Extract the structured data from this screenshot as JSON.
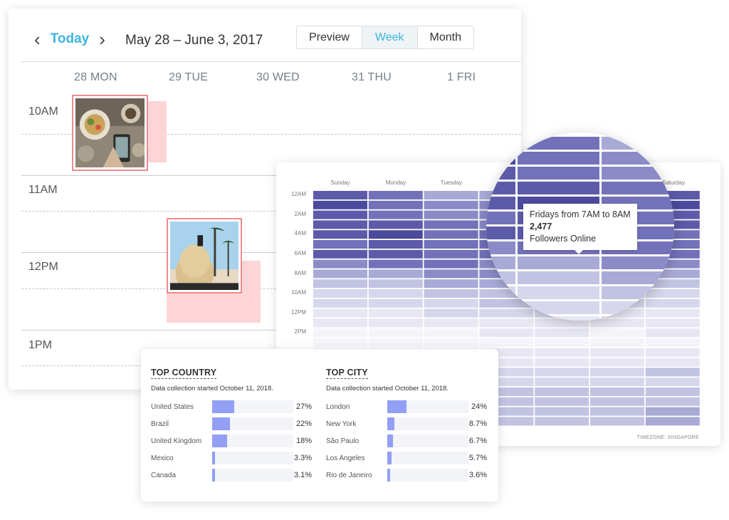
{
  "calendar": {
    "nav": {
      "prev_icon": "chevron-left-icon",
      "today_label": "Today",
      "next_icon": "chevron-right-icon"
    },
    "date_range": "May 28 – June 3, 2017",
    "views": [
      {
        "label": "Preview",
        "active": false
      },
      {
        "label": "Week",
        "active": true
      },
      {
        "label": "Month",
        "active": false
      }
    ],
    "days": [
      "28 MON",
      "29 TUE",
      "30 WED",
      "31 THU",
      "1 FRI"
    ],
    "hours": [
      "10AM",
      "11AM",
      "12PM",
      "1PM"
    ],
    "accent": "#3cb6e0",
    "event_border": "#f08a8c",
    "event_shadow": "#fdd5d6"
  },
  "heatmap": {
    "days": [
      "Sunday",
      "Monday",
      "Tuesday",
      "",
      "",
      "",
      "Saturday"
    ],
    "times": [
      "12AM",
      "2AM",
      "4AM",
      "6AM",
      "8AM",
      "10AM",
      "12PM",
      "2PM"
    ],
    "timezone": "TIMEZONE: SINGAPORE",
    "colors": [
      "#f4f4fa",
      "#e7e7f4",
      "#d6d6ec",
      "#c2c2e2",
      "#a9a9d6",
      "#8c8bc8",
      "#7271b9",
      "#5c5aa9",
      "#4c4a9c"
    ],
    "levels": [
      [
        7,
        6,
        4,
        4,
        4,
        4,
        7
      ],
      [
        8,
        6,
        5,
        5,
        5,
        5,
        8
      ],
      [
        7,
        6,
        5,
        5,
        5,
        5,
        7
      ],
      [
        7,
        7,
        6,
        5,
        5,
        6,
        7
      ],
      [
        7,
        8,
        6,
        6,
        5,
        6,
        6
      ],
      [
        6,
        7,
        6,
        6,
        6,
        6,
        6
      ],
      [
        7,
        7,
        6,
        6,
        6,
        5,
        6
      ],
      [
        5,
        6,
        6,
        5,
        5,
        5,
        5
      ],
      [
        4,
        4,
        5,
        5,
        5,
        4,
        4
      ],
      [
        3,
        3,
        4,
        4,
        4,
        3,
        3
      ],
      [
        2,
        2,
        3,
        3,
        3,
        2,
        2
      ],
      [
        2,
        2,
        2,
        3,
        2,
        2,
        2
      ],
      [
        1,
        1,
        2,
        2,
        2,
        1,
        1
      ],
      [
        1,
        1,
        1,
        1,
        1,
        1,
        1
      ],
      [
        0,
        0,
        0,
        1,
        1,
        0,
        1
      ],
      [
        0,
        0,
        0,
        0,
        0,
        0,
        0
      ],
      [
        1,
        1,
        1,
        1,
        1,
        1,
        1
      ],
      [
        1,
        1,
        1,
        1,
        1,
        1,
        1
      ],
      [
        2,
        2,
        2,
        2,
        2,
        2,
        3
      ],
      [
        2,
        2,
        2,
        2,
        2,
        2,
        2
      ],
      [
        3,
        3,
        3,
        3,
        3,
        3,
        3
      ],
      [
        3,
        3,
        3,
        3,
        3,
        3,
        3
      ],
      [
        3,
        3,
        3,
        3,
        3,
        3,
        4
      ],
      [
        3,
        3,
        3,
        3,
        3,
        3,
        4
      ]
    ]
  },
  "tooltip": {
    "line1": "Fridays from 7AM to 8AM",
    "value": "2,477",
    "line3": "Followers Online"
  },
  "top_country": {
    "title": "TOP COUNTRY",
    "subtitle": "Data collection started October 11, 2018.",
    "items": [
      {
        "label": "United States",
        "value": "27%",
        "fraction": 0.27
      },
      {
        "label": "Brazil",
        "value": "22%",
        "fraction": 0.22
      },
      {
        "label": "United Kingdom",
        "value": "18%",
        "fraction": 0.18
      },
      {
        "label": "Mexico",
        "value": "3.3%",
        "fraction": 0.033
      },
      {
        "label": "Canada",
        "value": "3.1%",
        "fraction": 0.031
      }
    ]
  },
  "top_city": {
    "title": "TOP CITY",
    "subtitle": "Data collection started October 11, 2018.",
    "items": [
      {
        "label": "London",
        "value": "24%",
        "fraction": 0.24
      },
      {
        "label": "New York",
        "value": "8.7%",
        "fraction": 0.087
      },
      {
        "label": "São Paulo",
        "value": "6.7%",
        "fraction": 0.067
      },
      {
        "label": "Los Angeles",
        "value": "5.7%",
        "fraction": 0.057
      },
      {
        "label": "Rio de Janeiro",
        "value": "3.6%",
        "fraction": 0.036
      }
    ]
  },
  "bar_color": "#929ff5"
}
